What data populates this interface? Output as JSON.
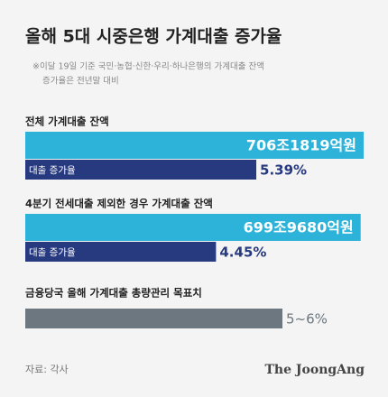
{
  "title": "올해 5대 시중은행 가계대출 증가율",
  "note": [
    "※이달 19일 기준 국민·농협·신한·우리·하나은행의 가계대출 잔액",
    "증가율은 전년말 대비"
  ],
  "chart_data": {
    "type": "bar",
    "groups": [
      {
        "label": "전체 가계대출 잔액",
        "amount": 7061819,
        "amount_label": "706조1819억원",
        "amount_color": "#2db3d9",
        "rate_name": "대출 증가율",
        "rate": 5.39,
        "rate_label": "5.39%",
        "rate_color": "#27397f"
      },
      {
        "label": "4분기 전세대출 제외한 경우 가계대출 잔액",
        "amount": 6999680,
        "amount_label": "699조9680억원",
        "amount_color": "#2db3d9",
        "rate_name": "대출 증가율",
        "rate": 4.45,
        "rate_label": "4.45%",
        "rate_color": "#27397f"
      }
    ],
    "target": {
      "label": "금융당국 올해 가계대출 총량관리 목표치",
      "values": [
        5,
        6
      ],
      "value_label": "5~6%",
      "color": "#6c7780"
    }
  },
  "source": "자료: 각사",
  "brand": "The JoongAng"
}
